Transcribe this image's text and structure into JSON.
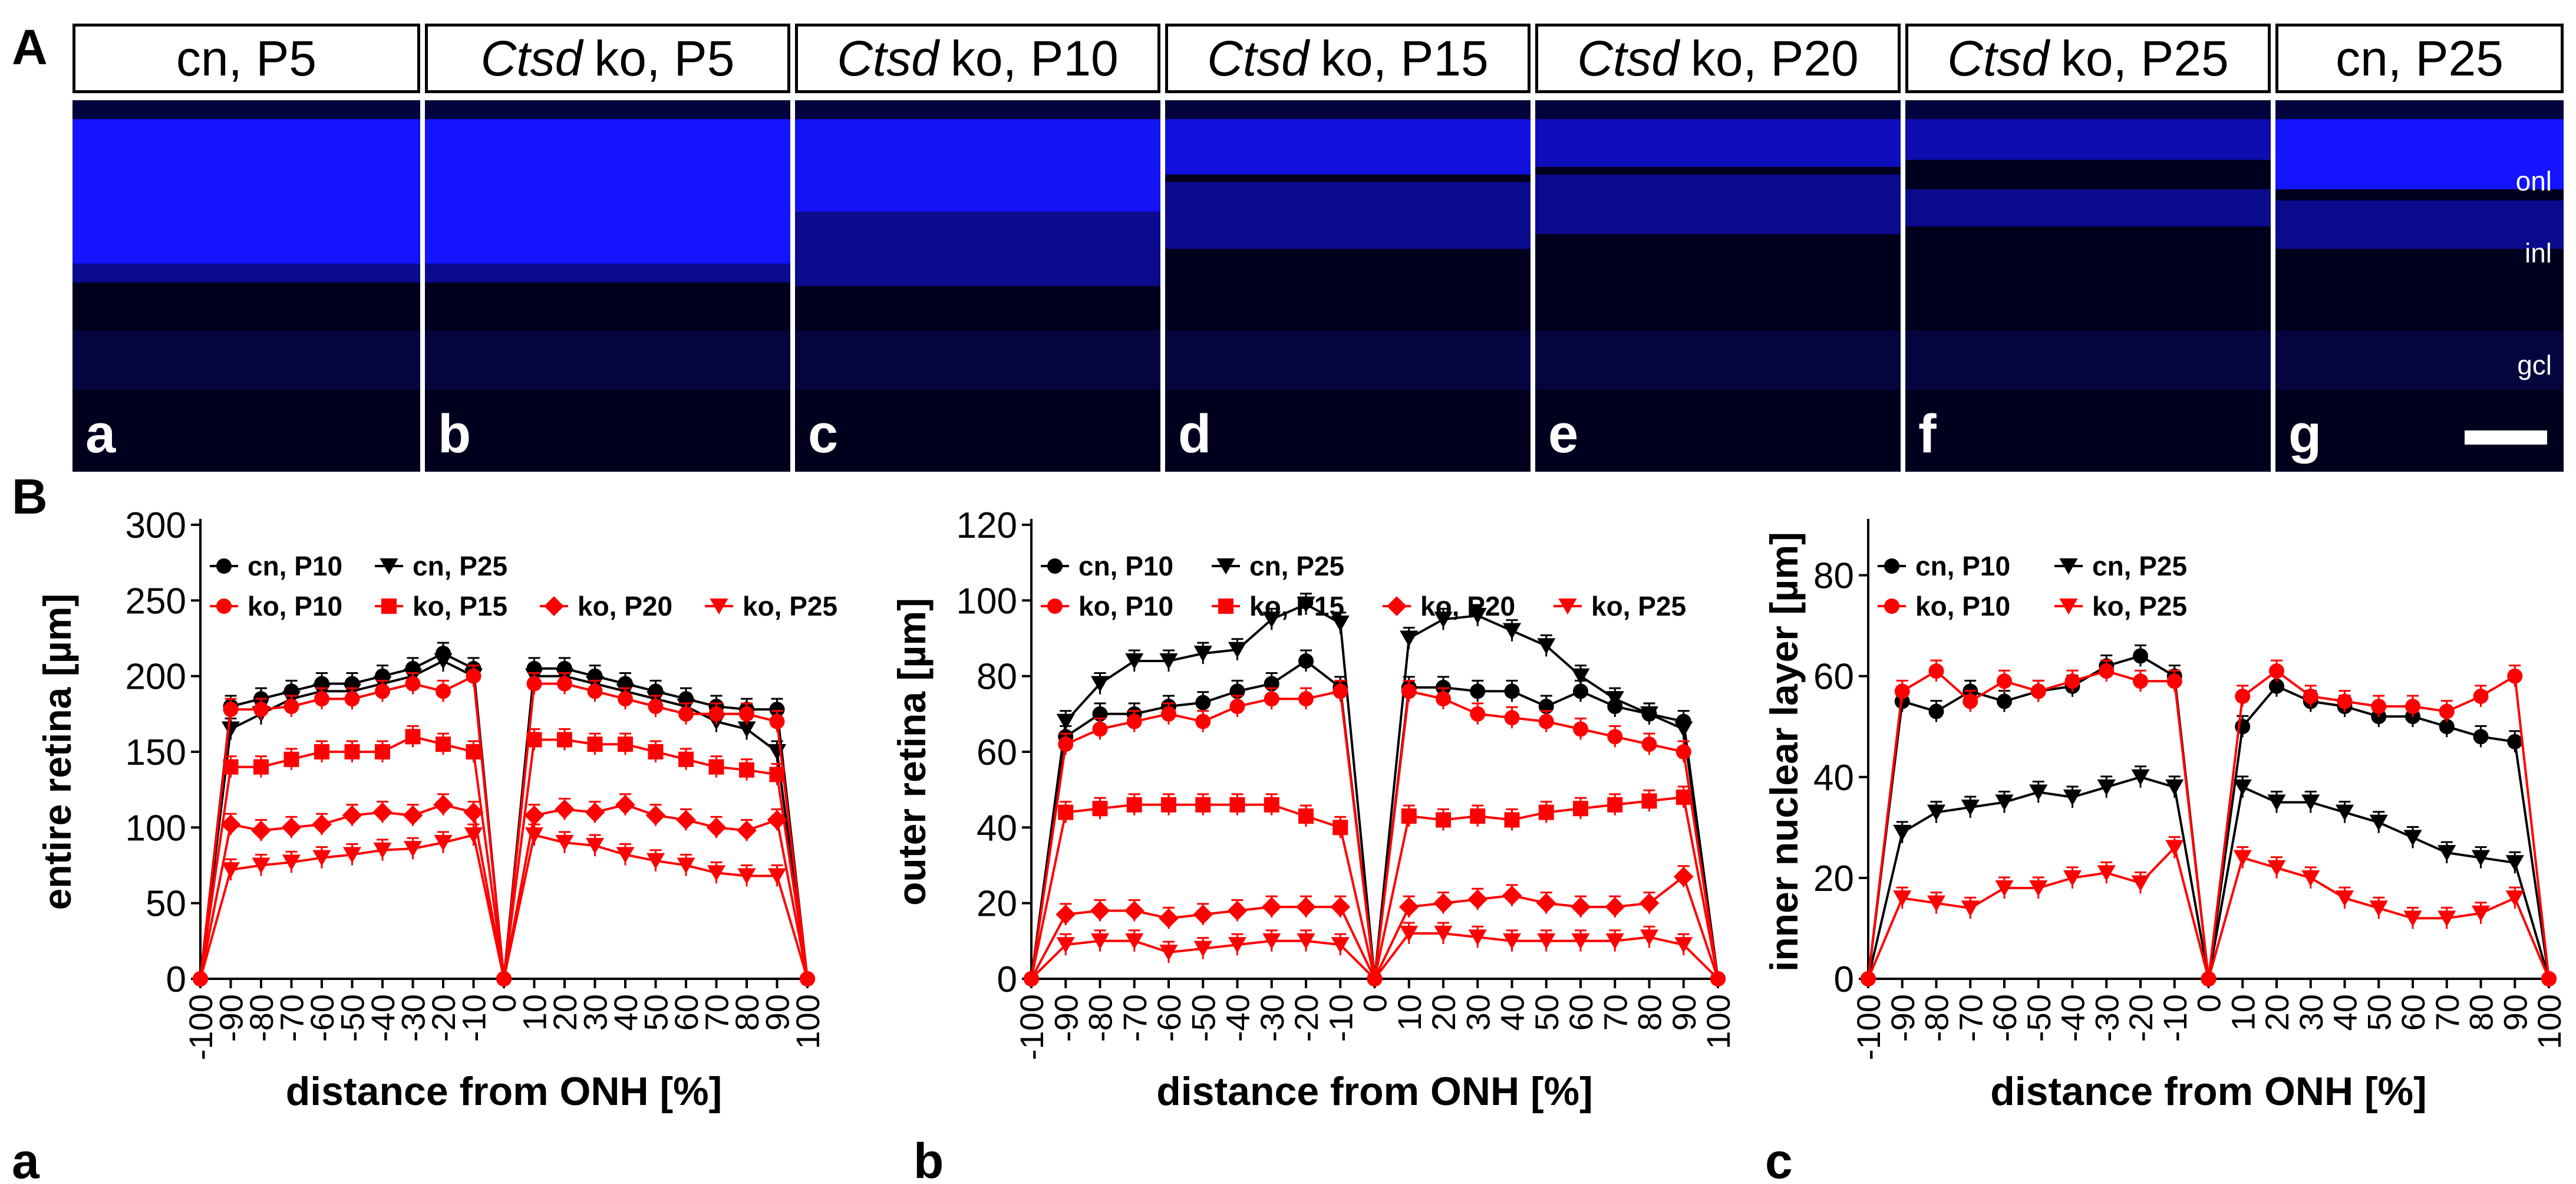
{
  "panel_labels": {
    "A": "A",
    "B": "B"
  },
  "micrographs": [
    {
      "genotype": "",
      "title": "cn, P5",
      "letter": "a",
      "onl_bright": 1.0,
      "onl_bottom": 0.44,
      "inl_top": 0.44,
      "inl_bottom": 0.49
    },
    {
      "genotype": "Ctsd",
      "title": " ko, P5",
      "letter": "b",
      "onl_bright": 1.0,
      "onl_bottom": 0.44,
      "inl_top": 0.44,
      "inl_bottom": 0.49
    },
    {
      "genotype": "Ctsd",
      "title": " ko, P10",
      "letter": "c",
      "onl_bright": 0.95,
      "onl_bottom": 0.3,
      "inl_top": 0.3,
      "inl_bottom": 0.5
    },
    {
      "genotype": "Ctsd",
      "title": " ko, P15",
      "letter": "d",
      "onl_bright": 0.85,
      "onl_bottom": 0.2,
      "inl_top": 0.22,
      "inl_bottom": 0.4
    },
    {
      "genotype": "Ctsd",
      "title": " ko, P20",
      "letter": "e",
      "onl_bright": 0.7,
      "onl_bottom": 0.18,
      "inl_top": 0.2,
      "inl_bottom": 0.36
    },
    {
      "genotype": "Ctsd",
      "title": " ko, P25",
      "letter": "f",
      "onl_bright": 0.65,
      "onl_bottom": 0.16,
      "inl_top": 0.24,
      "inl_bottom": 0.34
    },
    {
      "genotype": "",
      "title": "cn, P25",
      "letter": "g",
      "onl_bright": 1.0,
      "onl_bottom": 0.24,
      "inl_top": 0.27,
      "inl_bottom": 0.4
    }
  ],
  "layer_labels": {
    "onl": "onl",
    "inl": "inl",
    "gcl": "gcl"
  },
  "colors": {
    "cn": "#000000",
    "ko": "#ff0000",
    "micro_blue": "#1515ff"
  },
  "chart_data": [
    {
      "type": "line",
      "panel_letter": "a",
      "ylabel": "entire retina [µm]",
      "xlabel": "distance from ONH [%]",
      "ylim": [
        0,
        300
      ],
      "yticks": [
        0,
        50,
        100,
        150,
        200,
        250,
        300
      ],
      "xticks": [
        "-100",
        "-90",
        "-80",
        "-70",
        "-60",
        "-50",
        "-40",
        "-30",
        "-20",
        "-10",
        "0",
        "10",
        "20",
        "30",
        "40",
        "50",
        "60",
        "70",
        "80",
        "90",
        "100"
      ],
      "legend_rows": [
        [
          {
            "key": "cn10",
            "label": "cn, P10"
          },
          {
            "key": "cn25",
            "label": "cn, P25"
          }
        ],
        [
          {
            "key": "ko10",
            "label": "ko, P10"
          },
          {
            "key": "ko15",
            "label": "ko, P15"
          },
          {
            "key": "ko20",
            "label": "ko, P20"
          },
          {
            "key": "ko25",
            "label": "ko, P25"
          }
        ]
      ],
      "series": [
        {
          "key": "cn10",
          "name": "cn, P10",
          "color": "black",
          "marker": "circle",
          "left": [
            180,
            185,
            190,
            195,
            195,
            200,
            205,
            215,
            205
          ],
          "right": [
            205,
            205,
            200,
            195,
            190,
            185,
            180,
            178,
            178
          ]
        },
        {
          "key": "cn25",
          "name": "cn, P25",
          "color": "black",
          "marker": "triangle",
          "left": [
            165,
            175,
            185,
            190,
            190,
            195,
            200,
            210,
            200
          ],
          "right": [
            200,
            200,
            195,
            190,
            185,
            180,
            170,
            165,
            150
          ]
        },
        {
          "key": "ko10",
          "name": "ko, P10",
          "color": "red",
          "marker": "circle",
          "left": [
            178,
            178,
            180,
            185,
            185,
            190,
            195,
            190,
            200
          ],
          "right": [
            195,
            195,
            190,
            185,
            180,
            175,
            175,
            175,
            170
          ]
        },
        {
          "key": "ko15",
          "name": "ko, P15",
          "color": "red",
          "marker": "square",
          "left": [
            140,
            140,
            145,
            150,
            150,
            150,
            160,
            155,
            150
          ],
          "right": [
            158,
            158,
            155,
            155,
            150,
            145,
            140,
            138,
            135
          ]
        },
        {
          "key": "ko20",
          "name": "ko, P20",
          "color": "red",
          "marker": "diamond",
          "left": [
            102,
            98,
            100,
            102,
            108,
            110,
            108,
            115,
            110
          ],
          "right": [
            108,
            112,
            110,
            115,
            108,
            105,
            100,
            98,
            105
          ]
        },
        {
          "key": "ko25",
          "name": "ko, P25",
          "color": "red",
          "marker": "triangle",
          "left": [
            72,
            75,
            77,
            80,
            82,
            85,
            86,
            90,
            95
          ],
          "right": [
            95,
            90,
            88,
            82,
            78,
            75,
            70,
            68,
            68
          ]
        }
      ]
    },
    {
      "type": "line",
      "panel_letter": "b",
      "ylabel": "outer retina [µm]",
      "xlabel": "distance from ONH [%]",
      "ylim": [
        0,
        120
      ],
      "yticks": [
        0,
        20,
        40,
        60,
        80,
        100,
        120
      ],
      "xticks": [
        "-100",
        "-90",
        "-80",
        "-70",
        "-60",
        "-50",
        "-40",
        "-30",
        "-20",
        "-10",
        "0",
        "10",
        "20",
        "30",
        "40",
        "50",
        "60",
        "70",
        "80",
        "90",
        "100"
      ],
      "legend_rows": [
        [
          {
            "key": "cn10",
            "label": "cn, P10"
          },
          {
            "key": "cn25",
            "label": "cn, P25"
          }
        ],
        [
          {
            "key": "ko10",
            "label": "ko, P10"
          },
          {
            "key": "ko15",
            "label": "ko, P15"
          },
          {
            "key": "ko20",
            "label": "ko, P20"
          },
          {
            "key": "ko25",
            "label": "ko, P25"
          }
        ]
      ],
      "series": [
        {
          "key": "cn10",
          "name": "cn, P10",
          "color": "black",
          "marker": "circle",
          "left": [
            64,
            70,
            70,
            72,
            73,
            76,
            78,
            84,
            77
          ],
          "right": [
            77,
            77,
            76,
            76,
            72,
            76,
            72,
            70,
            68
          ]
        },
        {
          "key": "cn25",
          "name": "cn, P25",
          "color": "black",
          "marker": "triangle",
          "left": [
            68,
            78,
            84,
            84,
            86,
            87,
            95,
            99,
            94
          ],
          "right": [
            90,
            95,
            96,
            92,
            88,
            80,
            74,
            70,
            66
          ]
        },
        {
          "key": "ko10",
          "name": "ko, P10",
          "color": "red",
          "marker": "circle",
          "left": [
            62,
            66,
            68,
            70,
            68,
            72,
            74,
            74,
            76
          ],
          "right": [
            76,
            74,
            70,
            69,
            68,
            66,
            64,
            62,
            60
          ]
        },
        {
          "key": "ko15",
          "name": "ko, P15",
          "color": "red",
          "marker": "square",
          "left": [
            44,
            45,
            46,
            46,
            46,
            46,
            46,
            43,
            40
          ],
          "right": [
            43,
            42,
            43,
            42,
            44,
            45,
            46,
            47,
            48
          ]
        },
        {
          "key": "ko20",
          "name": "ko, P20",
          "color": "red",
          "marker": "diamond",
          "left": [
            17,
            18,
            18,
            16,
            17,
            18,
            19,
            19,
            19
          ],
          "right": [
            19,
            20,
            21,
            22,
            20,
            19,
            19,
            20,
            27
          ]
        },
        {
          "key": "ko25",
          "name": "ko, P25",
          "color": "red",
          "marker": "triangle",
          "left": [
            9,
            10,
            10,
            7,
            8,
            9,
            10,
            10,
            9
          ],
          "right": [
            12,
            12,
            11,
            10,
            10,
            10,
            10,
            11,
            9
          ]
        }
      ]
    },
    {
      "type": "line",
      "panel_letter": "c",
      "ylabel": "inner nuclear layer [µm]",
      "xlabel": "distance from ONH [%]",
      "ylim": [
        0,
        90
      ],
      "yticks": [
        0,
        20,
        40,
        60,
        80
      ],
      "xticks": [
        "-100",
        "-90",
        "-80",
        "-70",
        "-60",
        "-50",
        "-40",
        "-30",
        "-20",
        "-10",
        "0",
        "10",
        "20",
        "30",
        "40",
        "50",
        "60",
        "70",
        "80",
        "90",
        "100"
      ],
      "legend_rows": [
        [
          {
            "key": "cn10",
            "label": "cn, P10"
          },
          {
            "key": "cn25",
            "label": "cn, P25"
          }
        ],
        [
          {
            "key": "ko10",
            "label": "ko, P10"
          },
          {
            "key": "ko25",
            "label": "ko, P25"
          }
        ]
      ],
      "series": [
        {
          "key": "cn10",
          "name": "cn, P10",
          "color": "black",
          "marker": "circle",
          "left": [
            55,
            53,
            57,
            55,
            57,
            58,
            62,
            64,
            60
          ],
          "right": [
            50,
            58,
            55,
            54,
            52,
            52,
            50,
            48,
            47
          ]
        },
        {
          "key": "cn25",
          "name": "cn, P25",
          "color": "black",
          "marker": "triangle",
          "left": [
            29,
            33,
            34,
            35,
            37,
            36,
            38,
            40,
            38
          ],
          "right": [
            38,
            35,
            35,
            33,
            31,
            28,
            25,
            24,
            23
          ]
        },
        {
          "key": "ko10",
          "name": "ko, P10",
          "color": "red",
          "marker": "circle",
          "left": [
            57,
            61,
            55,
            59,
            57,
            59,
            61,
            59,
            59
          ],
          "right": [
            56,
            61,
            56,
            55,
            54,
            54,
            53,
            56,
            60
          ]
        },
        {
          "key": "ko25",
          "name": "ko, P25",
          "color": "red",
          "marker": "triangle",
          "left": [
            16,
            15,
            14,
            18,
            18,
            20,
            21,
            19,
            26
          ],
          "right": [
            24,
            22,
            20,
            16,
            14,
            12,
            12,
            13,
            16
          ]
        }
      ]
    }
  ]
}
